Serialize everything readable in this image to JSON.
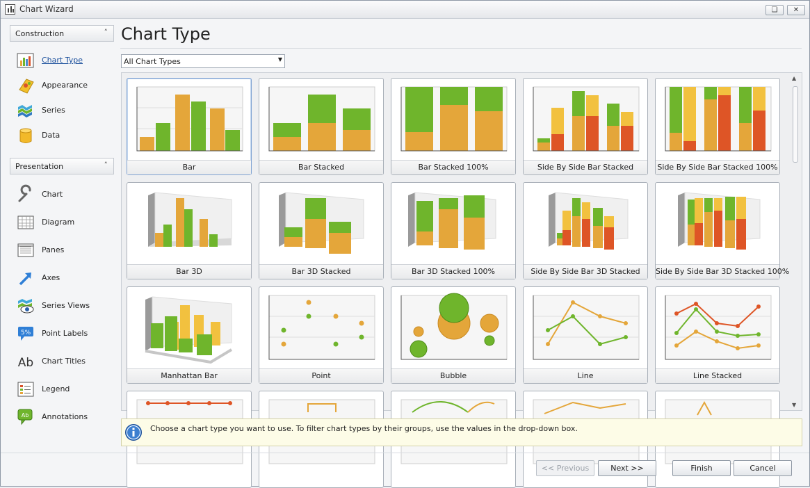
{
  "window": {
    "title": "Chart Wizard",
    "restore_glyph": "❑",
    "close_glyph": "✕"
  },
  "sidebar": {
    "construction": {
      "header": "Construction",
      "chevron": "˄",
      "items": [
        {
          "label": "Chart Type",
          "icon": "bar-chart-icon",
          "active": true
        },
        {
          "label": "Appearance",
          "icon": "palette-icon"
        },
        {
          "label": "Series",
          "icon": "layers-icon"
        },
        {
          "label": "Data",
          "icon": "database-icon"
        }
      ]
    },
    "presentation": {
      "header": "Presentation",
      "chevron": "˄",
      "items": [
        {
          "label": "Chart",
          "icon": "wrench-icon"
        },
        {
          "label": "Diagram",
          "icon": "grid-icon"
        },
        {
          "label": "Panes",
          "icon": "panes-icon"
        },
        {
          "label": "Axes",
          "icon": "arrow-icon"
        },
        {
          "label": "Series Views",
          "icon": "eye-icon"
        },
        {
          "label": "Point Labels",
          "icon": "percent-label-icon",
          "badge": "5%"
        },
        {
          "label": "Chart Titles",
          "icon": "text-icon",
          "glyph": "Ab"
        },
        {
          "label": "Legend",
          "icon": "legend-icon"
        },
        {
          "label": "Annotations",
          "icon": "speech-bubble-icon",
          "glyph": "Ab"
        }
      ]
    }
  },
  "main": {
    "title": "Chart Type",
    "filter": {
      "value": "All Chart Types",
      "arrow": "▼"
    },
    "chart_types": [
      "Bar",
      "Bar Stacked",
      "Bar Stacked 100%",
      "Side By Side Bar Stacked",
      "Side By Side Bar Stacked 100%",
      "Bar 3D",
      "Bar 3D Stacked",
      "Bar 3D Stacked 100%",
      "Side By Side Bar 3D Stacked",
      "Side By Side Bar 3D Stacked 100%",
      "Manhattan Bar",
      "Point",
      "Bubble",
      "Line",
      "Line Stacked"
    ],
    "selected": "Bar",
    "info": "Choose a chart type you want to use. To filter chart types by their groups, use the values in the drop-down box."
  },
  "footer": {
    "previous": "<< Previous",
    "next": "Next >>",
    "finish": "Finish",
    "cancel": "Cancel"
  },
  "colors": {
    "green": "#6fb52c",
    "orange": "#e4a63a",
    "red": "#de5526",
    "yellow": "#f2c13f",
    "accent": "#1a4f9c"
  }
}
